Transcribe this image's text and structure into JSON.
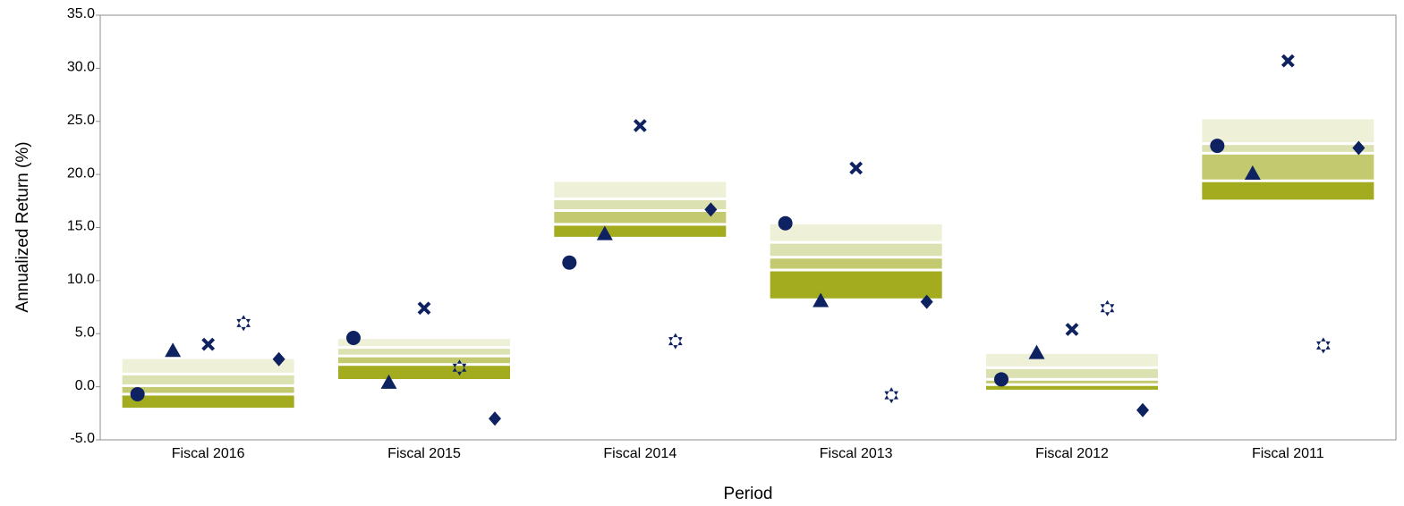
{
  "chart_data": {
    "type": "range_band_scatter",
    "y_label": "Annualized Return (%)",
    "x_label": "Period",
    "categories": [
      "Fiscal 2016",
      "Fiscal 2015",
      "Fiscal 2014",
      "Fiscal 2013",
      "Fiscal 2012",
      "Fiscal 2011"
    ],
    "ranges": [
      [
        2.6,
        1.2,
        0.1,
        -0.7,
        -2.1
      ],
      [
        4.5,
        3.7,
        2.9,
        2.1,
        0.6
      ],
      [
        19.3,
        17.7,
        16.6,
        15.3,
        14.0
      ],
      [
        15.3,
        13.6,
        12.2,
        11.0,
        8.2
      ],
      [
        3.1,
        1.8,
        0.7,
        0.2,
        -0.4
      ],
      [
        25.2,
        22.9,
        22.0,
        19.4,
        17.5
      ]
    ],
    "band_colors": [
      "#eef0d8",
      "#dce1b1",
      "#c3c96f",
      "#a3ab1f"
    ],
    "series": [
      {
        "marker": "circle",
        "color": "#0e2160",
        "values": [
          -0.7,
          4.6,
          11.7,
          15.4,
          0.7,
          22.7
        ]
      },
      {
        "marker": "triangle",
        "color": "#0e2160",
        "values": [
          3.4,
          0.4,
          14.4,
          8.1,
          3.2,
          20.1
        ]
      },
      {
        "marker": "cross",
        "color": "#0e2160",
        "values": [
          4.0,
          7.4,
          24.6,
          20.6,
          5.4,
          30.7
        ]
      },
      {
        "marker": "star",
        "color": "#0e2160",
        "values": [
          6.0,
          1.8,
          4.3,
          -0.8,
          7.4,
          3.9
        ]
      },
      {
        "marker": "diamond",
        "color": "#0e2160",
        "values": [
          2.6,
          -3.0,
          16.7,
          8.0,
          -2.2,
          22.5
        ]
      }
    ],
    "ylim": [
      -5,
      35
    ],
    "yticks": [
      {
        "value": -5,
        "label": "-5.0"
      },
      {
        "value": 0,
        "label": "0.0"
      },
      {
        "value": 5,
        "label": "5.0"
      },
      {
        "value": 10,
        "label": "10.0"
      },
      {
        "value": 15,
        "label": "15.0"
      },
      {
        "value": 20,
        "label": "20.0"
      },
      {
        "value": 25,
        "label": "25.0"
      },
      {
        "value": 30,
        "label": "30.0"
      },
      {
        "value": 35,
        "label": "35.0"
      }
    ],
    "grid": false
  }
}
